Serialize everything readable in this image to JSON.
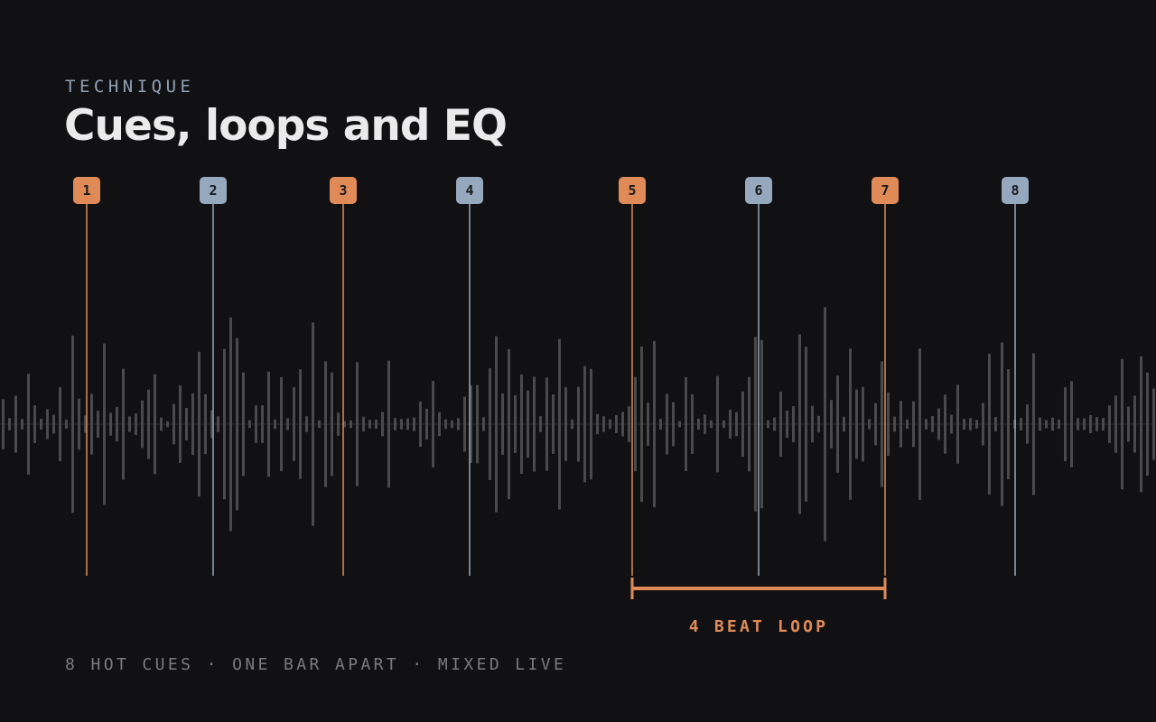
{
  "header": {
    "eyebrow": "TECHNIQUE",
    "title": "Cues, loops and EQ"
  },
  "cues": [
    {
      "label": "1",
      "color": "#e08a58"
    },
    {
      "label": "2",
      "color": "#95a8bd"
    },
    {
      "label": "3",
      "color": "#e08a58"
    },
    {
      "label": "4",
      "color": "#95a8bd"
    },
    {
      "label": "5",
      "color": "#e08a58"
    },
    {
      "label": "6",
      "color": "#95a8bd"
    },
    {
      "label": "7",
      "color": "#e08a58"
    },
    {
      "label": "8",
      "color": "#95a8bd"
    }
  ],
  "loop": {
    "label": "4 BEAT LOOP",
    "from_cue": "5",
    "to_cue": "7",
    "color": "#e08a58"
  },
  "footer": {
    "text": "8 HOT CUES · ONE BAR APART · MIXED LIVE"
  },
  "colors": {
    "background": "#111113",
    "waveform": "#4a4a4c",
    "accent_orange": "#e08a58",
    "accent_blue": "#95a8bd"
  }
}
